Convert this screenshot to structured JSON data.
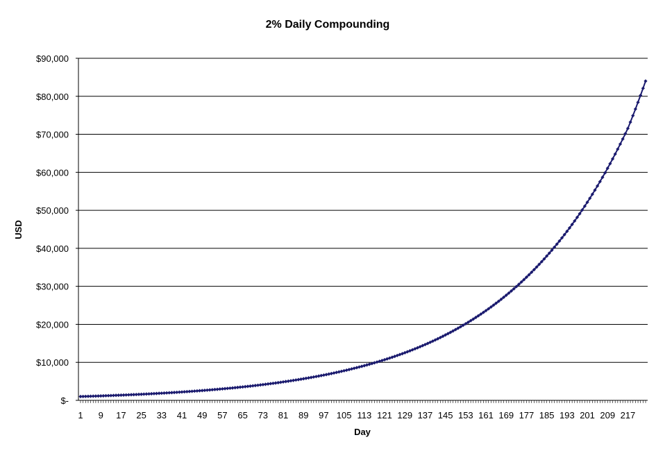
{
  "chart_data": {
    "type": "line",
    "title": "2% Daily Compounding",
    "xlabel": "Day",
    "ylabel": "USD",
    "x_tick_labels": [
      "1",
      "9",
      "17",
      "25",
      "33",
      "41",
      "49",
      "57",
      "65",
      "73",
      "81",
      "89",
      "97",
      "105",
      "113",
      "121",
      "129",
      "137",
      "145",
      "153",
      "161",
      "169",
      "177",
      "185",
      "193",
      "201",
      "209",
      "217"
    ],
    "y_tick_labels": [
      "$-",
      "$10,000",
      "$20,000",
      "$30,000",
      "$40,000",
      "$50,000",
      "$60,000",
      "$70,000",
      "$80,000",
      "$90,000"
    ],
    "ylim": [
      0,
      90000
    ],
    "xlim": [
      1,
      224
    ],
    "grid": true,
    "marker": "diamond",
    "series": [
      {
        "color": "#1a1a6e",
        "x": [
          1,
          9,
          17,
          25,
          33,
          41,
          49,
          57,
          65,
          73,
          81,
          89,
          97,
          105,
          113,
          121,
          129,
          137,
          145,
          153,
          161,
          169,
          177,
          185,
          193,
          201,
          209,
          217,
          224
        ],
        "values": [
          1000,
          1170,
          1370,
          1600,
          1880,
          2200,
          2580,
          3020,
          3530,
          4140,
          4850,
          5680,
          6650,
          7790,
          9130,
          10690,
          12530,
          14680,
          17200,
          20150,
          23610,
          27660,
          32400,
          37970,
          44480,
          52120,
          61060,
          71550,
          84000
        ]
      }
    ]
  }
}
